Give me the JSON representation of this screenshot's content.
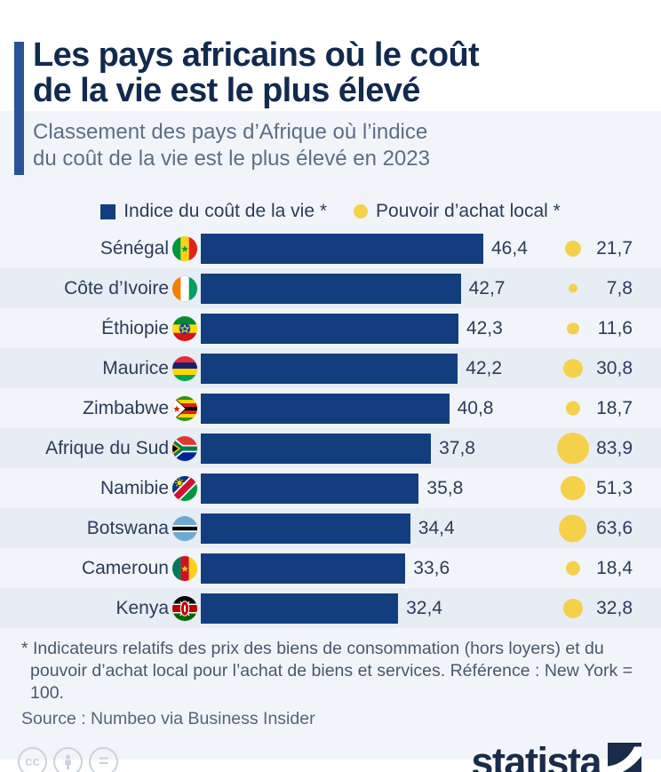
{
  "header": {
    "title_line1": "Les pays africains où le coût",
    "title_line2": "de la vie est le plus élevé",
    "subtitle_line1": "Classement des pays d’Afrique où l’indice",
    "subtitle_line2": "du coût de la vie est le plus élevé en 2023"
  },
  "legend": {
    "bar_label": "Indice du coût de la vie *",
    "circle_label": "Pouvoir d’achat local *"
  },
  "chart_data": {
    "type": "bar",
    "orientation": "horizontal",
    "categories": [
      "Sénégal",
      "Côte d’Ivoire",
      "Éthiopie",
      "Maurice",
      "Zimbabwe",
      "Afrique du Sud",
      "Namibie",
      "Botswana",
      "Cameroun",
      "Kenya"
    ],
    "flags": [
      "senegal-flag-icon",
      "cote-divoire-flag-icon",
      "ethiopie-flag-icon",
      "maurice-flag-icon",
      "zimbabwe-flag-icon",
      "afrique-du-sud-flag-icon",
      "namibie-flag-icon",
      "botswana-flag-icon",
      "cameroun-flag-icon",
      "kenya-flag-icon"
    ],
    "series": [
      {
        "name": "Indice du coût de la vie",
        "style": "bar",
        "color": "#123e80",
        "values": [
          46.4,
          42.7,
          42.3,
          42.2,
          40.8,
          37.8,
          35.8,
          34.4,
          33.6,
          32.4
        ]
      },
      {
        "name": "Pouvoir d’achat local",
        "style": "sized-circle",
        "color": "#f5d04b",
        "values": [
          21.7,
          7.8,
          11.6,
          30.8,
          18.7,
          83.9,
          51.3,
          63.6,
          18.4,
          32.8
        ]
      }
    ],
    "xlim": [
      0,
      46.4
    ],
    "decimal_separator": ",",
    "grid": false,
    "legend_position": "top-center",
    "reference": "New York = 100"
  },
  "notes": {
    "line1": "* Indicateurs relatifs des prix des biens de consommation (hors loyers) et du",
    "line2": "pouvoir d’achat local pour l’achat de biens et services. Référence : New York = 100.",
    "source": "Source : Numbeo via Business Insider"
  },
  "footer": {
    "license_icons": [
      "cc-icon",
      "person-icon",
      "equals-icon"
    ],
    "cc_label": "cc",
    "equals_label": "=",
    "brand": "statista"
  },
  "colors": {
    "bar": "#123e80",
    "circle": "#f5d04b",
    "accent": "#2a5298",
    "title": "#122a4e",
    "subtitle": "#5c6e86",
    "stripe": "#e7edf4",
    "background": "#f1f5f9",
    "text": "#2c3c58",
    "logo": "#1a2c4a"
  }
}
